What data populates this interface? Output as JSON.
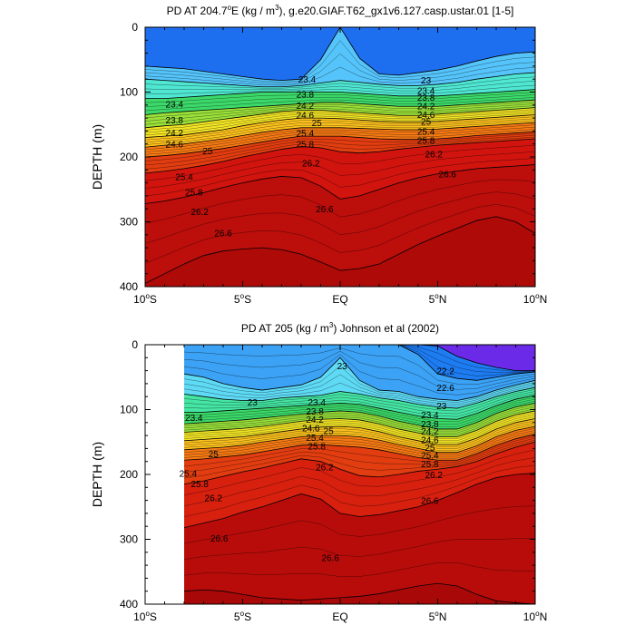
{
  "chart_data": [
    {
      "type": "contour",
      "title_parts": [
        "PD AT 204.7",
        "o",
        "E (kg / m",
        "3",
        "), g.e20.GIAF.T62_gx1v6.127.casp.ustar.01 [1-5]"
      ],
      "ylabel": "DEPTH (m)",
      "xlim": [
        -10,
        10
      ],
      "ylim": [
        0,
        400
      ],
      "x_ticks": [
        {
          "x": -10,
          "main": "10",
          "sup": "o",
          "suffix": "S"
        },
        {
          "x": -5,
          "main": "5",
          "sup": "o",
          "suffix": "S"
        },
        {
          "x": 0,
          "main": "EQ",
          "sup": "",
          "suffix": ""
        },
        {
          "x": 5,
          "main": "5",
          "sup": "o",
          "suffix": "N"
        },
        {
          "x": 10,
          "main": "10",
          "sup": "o",
          "suffix": "N"
        }
      ],
      "y_ticks": [
        "0",
        "100",
        "200",
        "300",
        "400"
      ],
      "y_tick_values": [
        0,
        100,
        200,
        300,
        400
      ],
      "data_x_start": -10,
      "x": [
        -10,
        -9,
        -8,
        -7,
        -6,
        -5,
        -4,
        -3,
        -2,
        -1,
        0,
        1,
        2,
        3,
        4,
        5,
        6,
        7,
        8,
        9,
        10
      ],
      "levels": [
        23.0,
        23.2,
        23.4,
        23.6,
        23.8,
        24.0,
        24.2,
        24.4,
        24.6,
        24.8,
        25.0,
        25.2,
        25.4,
        25.6,
        25.8,
        26.0,
        26.2,
        26.4,
        26.6,
        26.8
      ],
      "level_colors": [
        "#1e6ef0",
        "#3c9ff5",
        "#55c4fa",
        "#5fdcf5",
        "#4fe6d2",
        "#45e5a4",
        "#3cd96a",
        "#5ad340",
        "#9ae03a",
        "#d2ea32",
        "#f3e526",
        "#fcc21e",
        "#fa9d18",
        "#f57a14",
        "#ec5a12",
        "#e13d10",
        "#d8200f",
        "#d1140e",
        "#c8100d",
        "#bc0e0b",
        "#ad0a08"
      ],
      "depths": [
        {
          "sigma": 23.0,
          "y": [
            60,
            62,
            64,
            68,
            72,
            76,
            80,
            82,
            80,
            50,
            0,
            48,
            72,
            74,
            70,
            66,
            60,
            52,
            45,
            40,
            38
          ]
        },
        {
          "sigma": 23.4,
          "y": [
            80,
            82,
            84,
            86,
            88,
            90,
            92,
            92,
            90,
            86,
            82,
            85,
            88,
            90,
            90,
            88,
            85,
            80,
            76,
            72,
            70
          ]
        },
        {
          "sigma": 23.8,
          "y": [
            110,
            110,
            108,
            106,
            104,
            102,
            100,
            100,
            100,
            100,
            100,
            102,
            104,
            106,
            106,
            106,
            104,
            102,
            100,
            98,
            96
          ]
        },
        {
          "sigma": 24.2,
          "y": [
            135,
            132,
            130,
            128,
            126,
            124,
            122,
            120,
            118,
            116,
            116,
            118,
            120,
            122,
            122,
            122,
            120,
            118,
            116,
            114,
            112
          ]
        },
        {
          "sigma": 24.6,
          "y": [
            155,
            152,
            150,
            146,
            142,
            138,
            134,
            130,
            128,
            128,
            130,
            132,
            134,
            136,
            136,
            134,
            132,
            130,
            128,
            126,
            124
          ]
        },
        {
          "sigma": 25.0,
          "y": [
            170,
            168,
            166,
            162,
            158,
            152,
            147,
            143,
            140,
            140,
            141,
            143,
            145,
            146,
            146,
            145,
            143,
            141,
            139,
            137,
            135
          ]
        },
        {
          "sigma": 25.4,
          "y": [
            185,
            182,
            180,
            176,
            172,
            167,
            162,
            158,
            155,
            155,
            155,
            156,
            157,
            158,
            158,
            157,
            155,
            153,
            151,
            149,
            147
          ]
        },
        {
          "sigma": 25.8,
          "y": [
            200,
            198,
            195,
            191,
            187,
            182,
            177,
            172,
            168,
            168,
            168,
            170,
            172,
            173,
            173,
            172,
            170,
            167,
            165,
            163,
            161
          ]
        },
        {
          "sigma": 26.2,
          "y": [
            225,
            222,
            218,
            213,
            207,
            200,
            194,
            188,
            184,
            186,
            192,
            194,
            192,
            188,
            185,
            182,
            180,
            178,
            176,
            174,
            172
          ]
        },
        {
          "sigma": 26.6,
          "y": [
            272,
            268,
            262,
            255,
            247,
            240,
            234,
            230,
            232,
            245,
            265,
            260,
            250,
            240,
            232,
            226,
            222,
            218,
            216,
            214,
            212
          ]
        },
        {
          "sigma": 26.8,
          "y": [
            395,
            380,
            365,
            352,
            345,
            342,
            340,
            343,
            350,
            362,
            375,
            372,
            365,
            350,
            335,
            322,
            310,
            298,
            292,
            300,
            318
          ]
        }
      ],
      "annotations": [
        {
          "text": "23.4",
          "x": -1.7,
          "y": 80
        },
        {
          "text": "23.4",
          "x": -8.5,
          "y": 118
        },
        {
          "text": "23.8",
          "x": -1.8,
          "y": 103
        },
        {
          "text": "23.8",
          "x": -8.5,
          "y": 143
        },
        {
          "text": "24.2",
          "x": -1.8,
          "y": 120
        },
        {
          "text": "24.2",
          "x": -8.5,
          "y": 162
        },
        {
          "text": "24.6",
          "x": -1.8,
          "y": 135
        },
        {
          "text": "24.6",
          "x": -8.5,
          "y": 180
        },
        {
          "text": "25",
          "x": -1.2,
          "y": 147
        },
        {
          "text": "25",
          "x": -6.8,
          "y": 190
        },
        {
          "text": "25.4",
          "x": -1.8,
          "y": 163
        },
        {
          "text": "25.4",
          "x": -8.0,
          "y": 230
        },
        {
          "text": "25.8",
          "x": -1.8,
          "y": 180
        },
        {
          "text": "25.8",
          "x": -7.5,
          "y": 254
        },
        {
          "text": "26.2",
          "x": -1.5,
          "y": 209
        },
        {
          "text": "26.2",
          "x": -7.2,
          "y": 284
        },
        {
          "text": "26.6",
          "x": -6.0,
          "y": 317
        },
        {
          "text": "26.6",
          "x": -0.8,
          "y": 280
        },
        {
          "text": "23",
          "x": 4.4,
          "y": 81
        },
        {
          "text": "23.4",
          "x": 4.4,
          "y": 97
        },
        {
          "text": "23.8",
          "x": 4.4,
          "y": 108
        },
        {
          "text": "24.2",
          "x": 4.4,
          "y": 121
        },
        {
          "text": "24.6",
          "x": 4.4,
          "y": 134
        },
        {
          "text": "25",
          "x": 4.4,
          "y": 145
        },
        {
          "text": "25.4",
          "x": 4.4,
          "y": 160
        },
        {
          "text": "25.8",
          "x": 4.4,
          "y": 174
        },
        {
          "text": "26.2",
          "x": 4.8,
          "y": 195
        },
        {
          "text": "26.6",
          "x": 5.5,
          "y": 226
        }
      ]
    },
    {
      "type": "contour",
      "title_parts": [
        "PD AT 205 (kg / m",
        "3",
        ") Johnson et al (2002)"
      ],
      "ylabel": "DEPTH (m)",
      "xlim": [
        -10,
        10
      ],
      "ylim": [
        0,
        400
      ],
      "x_ticks": [
        {
          "x": -10,
          "main": "10",
          "sup": "o",
          "suffix": "S"
        },
        {
          "x": -5,
          "main": "5",
          "sup": "o",
          "suffix": "S"
        },
        {
          "x": 0,
          "main": "EQ",
          "sup": "",
          "suffix": ""
        },
        {
          "x": 5,
          "main": "5",
          "sup": "o",
          "suffix": "N"
        },
        {
          "x": 10,
          "main": "10",
          "sup": "o",
          "suffix": "N"
        }
      ],
      "y_ticks": [
        "0",
        "100",
        "200",
        "300",
        "400"
      ],
      "y_tick_values": [
        0,
        100,
        200,
        300,
        400
      ],
      "data_x_start": -8,
      "x": [
        -8,
        -7,
        -6,
        -5,
        -4,
        -3,
        -2,
        -1,
        0,
        1,
        2,
        3,
        4,
        5,
        6,
        7,
        8,
        9,
        10
      ],
      "levels": [
        22.2,
        22.6,
        23.0,
        23.2,
        23.4,
        23.6,
        23.8,
        24.0,
        24.2,
        24.4,
        24.6,
        24.8,
        25.0,
        25.2,
        25.4,
        25.6,
        25.8,
        26.0,
        26.2,
        26.4,
        26.6
      ],
      "level_colors": [
        "#6a2ae8",
        "#1f3ff0",
        "#1e7cf2",
        "#3ca2f5",
        "#55c2fa",
        "#5fdaf5",
        "#4fe6d2",
        "#45e5a4",
        "#3cd96a",
        "#5ad340",
        "#9ae03a",
        "#d2ea32",
        "#f3e526",
        "#fcc21e",
        "#fa9d18",
        "#f57a14",
        "#ec5a12",
        "#e13d10",
        "#d8200f",
        "#cc120d",
        "#b80c0a",
        "#a80908"
      ],
      "depths": [
        {
          "sigma": 22.2,
          "y": [
            0,
            0,
            0,
            0,
            0,
            0,
            0,
            0,
            0,
            0,
            0,
            0,
            0,
            2,
            18,
            28,
            35,
            40,
            40
          ]
        },
        {
          "sigma": 22.6,
          "y": [
            0,
            0,
            0,
            0,
            0,
            0,
            0,
            0,
            0,
            0,
            0,
            0,
            15,
            45,
            52,
            55,
            50,
            45,
            42
          ]
        },
        {
          "sigma": 23.0,
          "y": [
            45,
            50,
            60,
            66,
            70,
            66,
            62,
            50,
            20,
            55,
            70,
            72,
            80,
            84,
            86,
            80,
            70,
            62,
            55
          ]
        },
        {
          "sigma": 23.4,
          "y": [
            76,
            80,
            84,
            86,
            86,
            82,
            80,
            78,
            72,
            76,
            82,
            86,
            92,
            96,
            98,
            90,
            80,
            72,
            66
          ]
        },
        {
          "sigma": 23.8,
          "y": [
            104,
            104,
            102,
            100,
            98,
            96,
            94,
            92,
            90,
            92,
            98,
            104,
            110,
            114,
            115,
            106,
            94,
            84,
            78
          ]
        },
        {
          "sigma": 24.2,
          "y": [
            122,
            120,
            118,
            116,
            113,
            110,
            107,
            104,
            102,
            104,
            110,
            118,
            124,
            130,
            130,
            120,
            106,
            96,
            90
          ]
        },
        {
          "sigma": 24.6,
          "y": [
            135,
            133,
            131,
            129,
            126,
            122,
            118,
            115,
            114,
            116,
            122,
            130,
            136,
            142,
            142,
            132,
            118,
            108,
            102
          ]
        },
        {
          "sigma": 25.0,
          "y": [
            148,
            146,
            144,
            142,
            138,
            134,
            130,
            127,
            126,
            128,
            134,
            142,
            148,
            154,
            154,
            144,
            130,
            120,
            114
          ]
        },
        {
          "sigma": 25.4,
          "y": [
            162,
            160,
            158,
            155,
            150,
            146,
            142,
            140,
            140,
            142,
            147,
            154,
            160,
            166,
            166,
            156,
            142,
            132,
            126
          ]
        },
        {
          "sigma": 25.8,
          "y": [
            178,
            176,
            173,
            170,
            165,
            160,
            155,
            154,
            156,
            158,
            162,
            168,
            174,
            178,
            178,
            168,
            155,
            145,
            138
          ]
        },
        {
          "sigma": 26.2,
          "y": [
            215,
            210,
            203,
            196,
            190,
            183,
            176,
            180,
            192,
            202,
            204,
            200,
            195,
            192,
            188,
            180,
            168,
            158,
            150
          ]
        },
        {
          "sigma": 26.6,
          "y": [
            282,
            275,
            268,
            258,
            250,
            240,
            230,
            238,
            260,
            265,
            262,
            256,
            250,
            240,
            228,
            215,
            205,
            200,
            198
          ]
        },
        {
          "sigma": 27.0,
          "y": [
            380,
            378,
            380,
            385,
            390,
            392,
            394,
            392,
            390,
            388,
            384,
            378,
            372,
            368,
            372,
            385,
            395,
            398,
            400
          ]
        }
      ],
      "annotations": [
        {
          "text": "22.2",
          "x": 5.4,
          "y": 40
        },
        {
          "text": "22.6",
          "x": 5.4,
          "y": 66
        },
        {
          "text": "23",
          "x": 5.2,
          "y": 94
        },
        {
          "text": "23",
          "x": 0.1,
          "y": 32
        },
        {
          "text": "23",
          "x": -4.5,
          "y": 88
        },
        {
          "text": "23.4",
          "x": -7.5,
          "y": 112
        },
        {
          "text": "23.4",
          "x": -1.2,
          "y": 88
        },
        {
          "text": "23.8",
          "x": -1.3,
          "y": 102
        },
        {
          "text": "24.2",
          "x": -1.3,
          "y": 115
        },
        {
          "text": "24.6",
          "x": -1.5,
          "y": 128
        },
        {
          "text": "25",
          "x": -0.6,
          "y": 132
        },
        {
          "text": "25",
          "x": -6.5,
          "y": 168
        },
        {
          "text": "25.4",
          "x": -1.3,
          "y": 143
        },
        {
          "text": "25.4",
          "x": -7.8,
          "y": 198
        },
        {
          "text": "25.8",
          "x": -1.2,
          "y": 156
        },
        {
          "text": "25.8",
          "x": -7.2,
          "y": 214
        },
        {
          "text": "26.2",
          "x": -0.8,
          "y": 188
        },
        {
          "text": "26.2",
          "x": -6.5,
          "y": 236
        },
        {
          "text": "26.6",
          "x": -6.2,
          "y": 298
        },
        {
          "text": "26.6",
          "x": -0.5,
          "y": 328
        },
        {
          "text": "26.6",
          "x": 4.6,
          "y": 240
        },
        {
          "text": "23.4",
          "x": 4.6,
          "y": 108
        },
        {
          "text": "23.8",
          "x": 4.6,
          "y": 122
        },
        {
          "text": "24.2",
          "x": 4.6,
          "y": 133
        },
        {
          "text": "24.6",
          "x": 4.6,
          "y": 146
        },
        {
          "text": "25",
          "x": 4.6,
          "y": 158
        },
        {
          "text": "25.4",
          "x": 4.6,
          "y": 170
        },
        {
          "text": "25.8",
          "x": 4.6,
          "y": 183
        },
        {
          "text": "26.2",
          "x": 4.8,
          "y": 200
        }
      ]
    }
  ]
}
